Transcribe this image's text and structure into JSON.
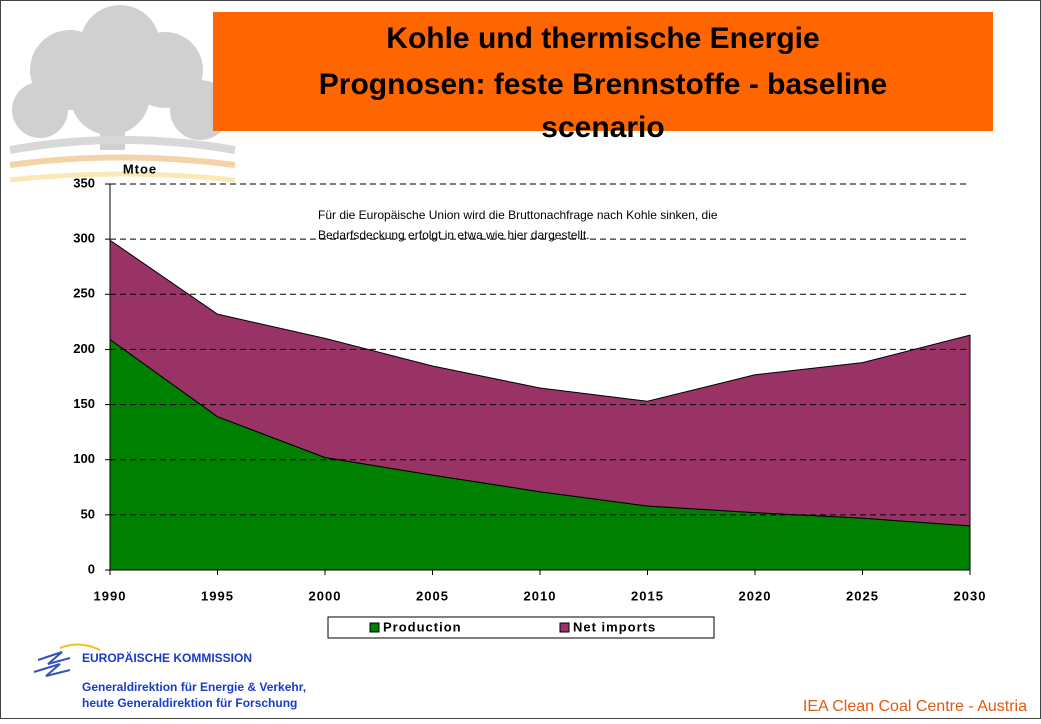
{
  "chart_data": {
    "type": "area",
    "stacked": true,
    "title": [
      "Kohle und thermische Energie",
      "Prognosen: feste Brennstoffe - baseline",
      "scenario"
    ],
    "ylabel": "Mtoe",
    "annotation": [
      "Für die Europäische Union wird die Bruttonachfrage nach Kohle sinken, die",
      "Bedarfsdeckung erfolgt in etwa wie hier dargestellt."
    ],
    "categories": [
      "1990",
      "1995",
      "2000",
      "2005",
      "2010",
      "2015",
      "2020",
      "2025",
      "2030"
    ],
    "series": [
      {
        "name": "Production",
        "color": "#008000",
        "values": [
          209,
          139,
          102,
          86,
          71,
          58,
          52,
          47,
          40
        ]
      },
      {
        "name": "Net imports",
        "color": "#993366",
        "values": [
          90,
          93,
          108,
          99,
          94,
          95,
          125,
          141,
          173
        ]
      }
    ],
    "ylim": [
      0,
      350
    ],
    "yticks": [
      0,
      50,
      100,
      150,
      200,
      250,
      300,
      350
    ],
    "grid": true,
    "legend": "bottom"
  },
  "footer": {
    "org": "EUROPÄISCHE KOMMISSION",
    "dept": [
      "Generaldirektion für Energie & Verkehr,",
      "heute Generaldirektion für Forschung"
    ],
    "credit": "IEA Clean Coal Centre - Austria"
  }
}
